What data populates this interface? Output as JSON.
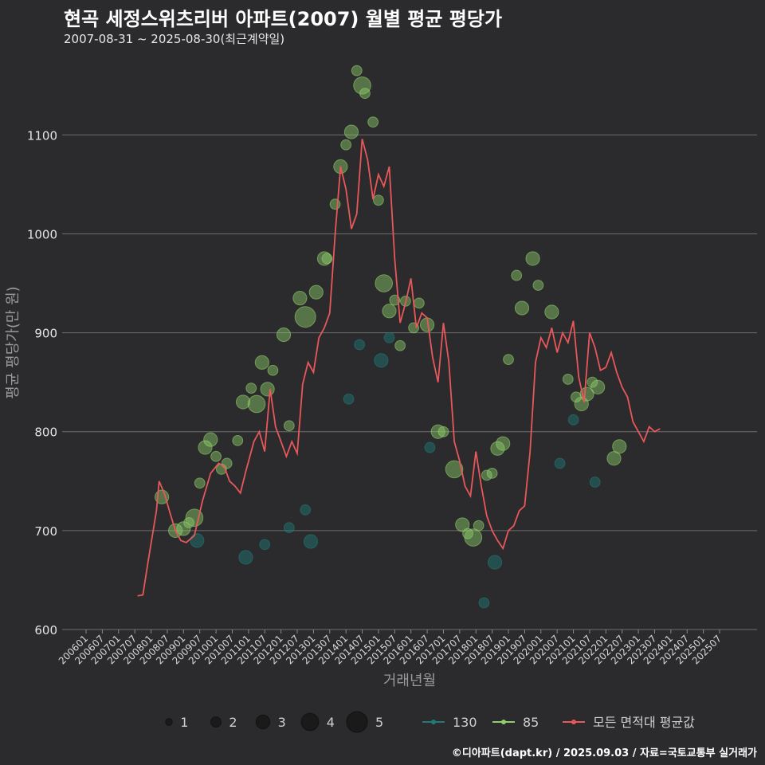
{
  "chart_data": {
    "type": "scatter",
    "title": "현곡 세정스위츠리버 아파트(2007) 월별 평균 평당가",
    "subtitle": "2007-08-31 ~ 2025-08-30(최근계약일)",
    "xlabel": "거래년월",
    "ylabel": "평균 평당가(만 원)",
    "ylim": [
      600,
      1180
    ],
    "yticks": [
      600,
      700,
      800,
      900,
      1000,
      1100
    ],
    "grid": true,
    "x_range": [
      "2006-01",
      "2025-12"
    ],
    "x_ticks": [
      "200601",
      "200607",
      "200701",
      "200707",
      "200801",
      "200807",
      "200901",
      "200907",
      "201001",
      "201007",
      "201101",
      "201107",
      "201201",
      "201207",
      "201301",
      "201307",
      "201401",
      "201407",
      "201501",
      "201507",
      "201601",
      "201607",
      "201701",
      "201707",
      "201801",
      "201807",
      "201901",
      "201907",
      "202001",
      "202007",
      "202101",
      "202107",
      "202201",
      "202207",
      "202301",
      "202307",
      "202401",
      "202407",
      "202501",
      "202507"
    ],
    "colors": {
      "s130": "#1f7a78",
      "s85": "#8fce6a",
      "avg": "#e8585a",
      "background": "#2b2a2c",
      "grid": "#6e6e6e"
    },
    "legend": {
      "placement": "bottom",
      "sizes": [
        1,
        2,
        3,
        4,
        5
      ],
      "series": [
        {
          "label": "130",
          "color": "#1f7a78"
        },
        {
          "label": "85",
          "color": "#8fce6a"
        },
        {
          "label": "모든 면적대 평균값",
          "color": "#e8585a"
        }
      ]
    },
    "line_series": {
      "name": "모든 면적대 평균값",
      "points": [
        [
          "2007-08",
          634
        ],
        [
          "2007-10",
          635
        ],
        [
          "2007-12",
          670
        ],
        [
          "2008-03",
          720
        ],
        [
          "2008-04",
          750
        ],
        [
          "2008-06",
          737
        ],
        [
          "2008-08",
          718
        ],
        [
          "2008-10",
          700
        ],
        [
          "2008-12",
          690
        ],
        [
          "2009-02",
          688
        ],
        [
          "2009-05",
          695
        ],
        [
          "2009-08",
          730
        ],
        [
          "2009-11",
          758
        ],
        [
          "2010-02",
          768
        ],
        [
          "2010-04",
          765
        ],
        [
          "2010-06",
          750
        ],
        [
          "2010-08",
          745
        ],
        [
          "2010-10",
          738
        ],
        [
          "2010-12",
          760
        ],
        [
          "2011-03",
          790
        ],
        [
          "2011-05",
          800
        ],
        [
          "2011-07",
          780
        ],
        [
          "2011-09",
          843
        ],
        [
          "2011-11",
          805
        ],
        [
          "2012-01",
          790
        ],
        [
          "2012-03",
          775
        ],
        [
          "2012-05",
          790
        ],
        [
          "2012-07",
          778
        ],
        [
          "2012-09",
          848
        ],
        [
          "2012-11",
          870
        ],
        [
          "2013-01",
          860
        ],
        [
          "2013-03",
          895
        ],
        [
          "2013-05",
          905
        ],
        [
          "2013-07",
          920
        ],
        [
          "2013-09",
          1000
        ],
        [
          "2013-11",
          1068
        ],
        [
          "2014-01",
          1045
        ],
        [
          "2014-03",
          1005
        ],
        [
          "2014-05",
          1020
        ],
        [
          "2014-07",
          1096
        ],
        [
          "2014-09",
          1075
        ],
        [
          "2014-11",
          1035
        ],
        [
          "2015-01",
          1060
        ],
        [
          "2015-03",
          1048
        ],
        [
          "2015-05",
          1068
        ],
        [
          "2015-07",
          975
        ],
        [
          "2015-09",
          910
        ],
        [
          "2015-11",
          930
        ],
        [
          "2016-01",
          955
        ],
        [
          "2016-03",
          905
        ],
        [
          "2016-05",
          920
        ],
        [
          "2016-07",
          915
        ],
        [
          "2016-09",
          875
        ],
        [
          "2016-11",
          850
        ],
        [
          "2017-01",
          910
        ],
        [
          "2017-03",
          870
        ],
        [
          "2017-05",
          790
        ],
        [
          "2017-07",
          770
        ],
        [
          "2017-09",
          745
        ],
        [
          "2017-11",
          735
        ],
        [
          "2018-01",
          780
        ],
        [
          "2018-03",
          745
        ],
        [
          "2018-05",
          715
        ],
        [
          "2018-07",
          700
        ],
        [
          "2018-09",
          690
        ],
        [
          "2018-11",
          682
        ],
        [
          "2019-01",
          700
        ],
        [
          "2019-03",
          705
        ],
        [
          "2019-05",
          720
        ],
        [
          "2019-07",
          725
        ],
        [
          "2019-09",
          780
        ],
        [
          "2019-11",
          870
        ],
        [
          "2020-01",
          895
        ],
        [
          "2020-03",
          885
        ],
        [
          "2020-05",
          905
        ],
        [
          "2020-07",
          880
        ],
        [
          "2020-09",
          900
        ],
        [
          "2020-11",
          890
        ],
        [
          "2021-01",
          912
        ],
        [
          "2021-03",
          855
        ],
        [
          "2021-05",
          830
        ],
        [
          "2021-07",
          900
        ],
        [
          "2021-09",
          885
        ],
        [
          "2021-11",
          862
        ],
        [
          "2022-01",
          865
        ],
        [
          "2022-03",
          880
        ],
        [
          "2022-05",
          860
        ],
        [
          "2022-07",
          845
        ],
        [
          "2022-09",
          835
        ],
        [
          "2022-11",
          810
        ],
        [
          "2023-01",
          800
        ],
        [
          "2023-03",
          790
        ],
        [
          "2023-05",
          805
        ],
        [
          "2023-07",
          800
        ],
        [
          "2023-09",
          803
        ]
      ]
    },
    "scatter_series": [
      {
        "name": "85",
        "points": [
          [
            "2008-05",
            734,
            3
          ],
          [
            "2008-10",
            700,
            3
          ],
          [
            "2009-01",
            702,
            3
          ],
          [
            "2009-03",
            708,
            2
          ],
          [
            "2009-05",
            713,
            4
          ],
          [
            "2009-07",
            748,
            2
          ],
          [
            "2009-09",
            784,
            3
          ],
          [
            "2009-11",
            792,
            3
          ],
          [
            "2010-01",
            775,
            2
          ],
          [
            "2010-03",
            762,
            2
          ],
          [
            "2010-05",
            768,
            2
          ],
          [
            "2010-09",
            791,
            2
          ],
          [
            "2010-11",
            830,
            3
          ],
          [
            "2011-02",
            844,
            2
          ],
          [
            "2011-04",
            828,
            4
          ],
          [
            "2011-06",
            870,
            3
          ],
          [
            "2011-08",
            843,
            3
          ],
          [
            "2011-10",
            862,
            2
          ],
          [
            "2012-02",
            898,
            3
          ],
          [
            "2012-04",
            806,
            2
          ],
          [
            "2012-08",
            935,
            3
          ],
          [
            "2012-10",
            916,
            5
          ],
          [
            "2013-02",
            941,
            3
          ],
          [
            "2013-05",
            975,
            3
          ],
          [
            "2013-06",
            975,
            2
          ],
          [
            "2013-09",
            1030,
            2
          ],
          [
            "2013-11",
            1068,
            3
          ],
          [
            "2014-01",
            1090,
            2
          ],
          [
            "2014-03",
            1103,
            3
          ],
          [
            "2014-05",
            1165,
            2
          ],
          [
            "2014-07",
            1150,
            4
          ],
          [
            "2014-08",
            1142,
            2
          ],
          [
            "2014-11",
            1113,
            2
          ],
          [
            "2015-01",
            1034,
            2
          ],
          [
            "2015-03",
            950,
            4
          ],
          [
            "2015-05",
            922,
            3
          ],
          [
            "2015-07",
            933,
            2
          ],
          [
            "2015-09",
            887,
            2
          ],
          [
            "2015-11",
            932,
            2
          ],
          [
            "2016-02",
            905,
            2
          ],
          [
            "2016-04",
            930,
            2
          ],
          [
            "2016-07",
            908,
            3
          ],
          [
            "2016-11",
            800,
            3
          ],
          [
            "2017-01",
            800,
            2
          ],
          [
            "2017-05",
            762,
            4
          ],
          [
            "2017-08",
            706,
            3
          ],
          [
            "2017-10",
            697,
            2
          ],
          [
            "2017-12",
            693,
            4
          ],
          [
            "2018-02",
            705,
            2
          ],
          [
            "2018-05",
            756,
            2
          ],
          [
            "2018-07",
            758,
            2
          ],
          [
            "2018-09",
            783,
            3
          ],
          [
            "2018-11",
            788,
            3
          ],
          [
            "2019-01",
            873,
            2
          ],
          [
            "2019-04",
            958,
            2
          ],
          [
            "2019-06",
            925,
            3
          ],
          [
            "2019-10",
            975,
            3
          ],
          [
            "2019-12",
            948,
            2
          ],
          [
            "2020-05",
            921,
            3
          ],
          [
            "2020-11",
            853,
            2
          ],
          [
            "2021-02",
            835,
            2
          ],
          [
            "2021-04",
            828,
            3
          ],
          [
            "2021-06",
            838,
            3
          ],
          [
            "2021-08",
            850,
            2
          ],
          [
            "2021-10",
            845,
            3
          ],
          [
            "2022-04",
            773,
            3
          ],
          [
            "2022-06",
            785,
            3
          ]
        ]
      },
      {
        "name": "130",
        "points": [
          [
            "2009-06",
            690,
            3
          ],
          [
            "2010-12",
            673,
            3
          ],
          [
            "2011-07",
            686,
            2
          ],
          [
            "2012-04",
            703,
            2
          ],
          [
            "2012-10",
            721,
            2
          ],
          [
            "2012-12",
            689,
            3
          ],
          [
            "2014-02",
            833,
            2
          ],
          [
            "2014-06",
            888,
            2
          ],
          [
            "2015-02",
            872,
            3
          ],
          [
            "2015-05",
            895,
            2
          ],
          [
            "2016-08",
            784,
            2
          ],
          [
            "2018-04",
            627,
            2
          ],
          [
            "2018-08",
            668,
            3
          ],
          [
            "2020-08",
            768,
            2
          ],
          [
            "2021-01",
            812,
            2
          ],
          [
            "2021-09",
            749,
            2
          ]
        ]
      }
    ]
  },
  "footer": "©디아파트(dapt.kr) / 2025.09.03 / 자료=국토교통부 실거래가"
}
